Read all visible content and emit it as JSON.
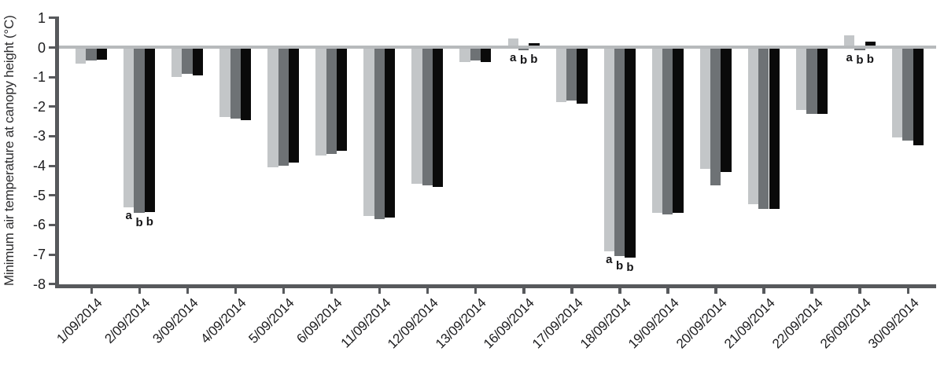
{
  "chart_data": {
    "type": "bar",
    "title": "",
    "xlabel": "",
    "ylabel": "Minimum air temperature at canopy height (°C)",
    "ylim": [
      -8,
      1
    ],
    "yticks": [
      1,
      0,
      -1,
      -2,
      -3,
      -4,
      -5,
      -6,
      -7,
      -8
    ],
    "grid": false,
    "legend_position": "none",
    "categories": [
      "1/09/2014",
      "2/09/2014",
      "3/09/2014",
      "4/09/2014",
      "5/09/2014",
      "6/09/2014",
      "11/09/2014",
      "12/09/2014",
      "13/09/2014",
      "16/09/2014",
      "17/09/2014",
      "18/09/2014",
      "19/09/2014",
      "20/09/2014",
      "21/09/2014",
      "22/09/2014",
      "26/09/2014",
      "30/09/2014"
    ],
    "series": [
      {
        "name": "light-gray-bars",
        "color": "#c3c6c8",
        "values": [
          -0.55,
          -5.4,
          -1.0,
          -2.35,
          -4.05,
          -3.65,
          -5.7,
          -4.6,
          -0.5,
          0.3,
          -1.85,
          -6.9,
          -5.6,
          -4.1,
          -5.3,
          -2.1,
          0.4,
          -3.05
        ]
      },
      {
        "name": "dark-gray-bars",
        "color": "#6e7275",
        "values": [
          -0.45,
          -5.6,
          -0.9,
          -2.4,
          -4.0,
          -3.6,
          -5.8,
          -4.65,
          -0.45,
          -0.1,
          -1.8,
          -7.05,
          -5.65,
          -4.65,
          -5.45,
          -2.25,
          -0.1,
          -3.15
        ]
      },
      {
        "name": "black-bars",
        "color": "#0a0a0a",
        "values": [
          -0.4,
          -5.55,
          -0.95,
          -2.45,
          -3.9,
          -3.5,
          -5.75,
          -4.7,
          -0.5,
          0.15,
          -1.9,
          -7.1,
          -5.6,
          -4.2,
          -5.45,
          -2.25,
          0.2,
          -3.3
        ]
      }
    ],
    "annotations": [
      null,
      [
        "a",
        "b",
        "b"
      ],
      null,
      null,
      null,
      null,
      null,
      null,
      null,
      [
        "a",
        "b",
        "b"
      ],
      null,
      [
        "a",
        "b",
        "b"
      ],
      null,
      null,
      null,
      null,
      [
        "a",
        "b",
        "b"
      ],
      null
    ],
    "colors": {
      "zero_line": "#b7babc",
      "axis": "#57595c",
      "tick_label": "#1d1d1f",
      "background": "#ffffff"
    }
  }
}
